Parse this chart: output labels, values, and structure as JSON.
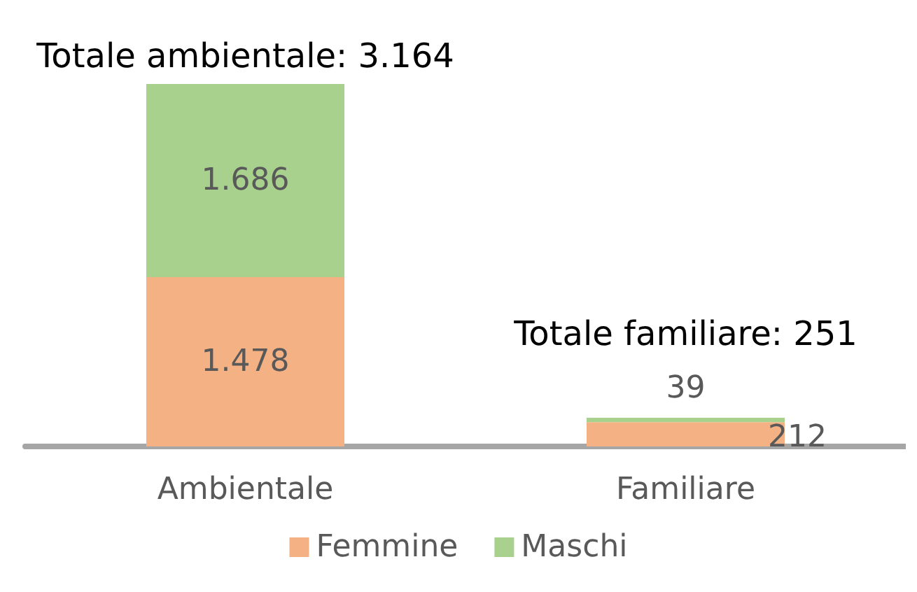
{
  "chart_data": {
    "type": "bar",
    "stacked": true,
    "categories": [
      "Ambientale",
      "Familiare"
    ],
    "series": [
      {
        "name": "Femmine",
        "color": "#f4b183",
        "values": [
          1478,
          212
        ],
        "value_labels": [
          "1.478",
          "212"
        ]
      },
      {
        "name": "Maschi",
        "color": "#a9d18e",
        "values": [
          1686,
          39
        ],
        "value_labels": [
          "1.686",
          "39"
        ]
      }
    ],
    "totals": [
      "Totale ambientale: 3.164",
      "Totale familiare: 251"
    ],
    "legend": "bottom"
  }
}
